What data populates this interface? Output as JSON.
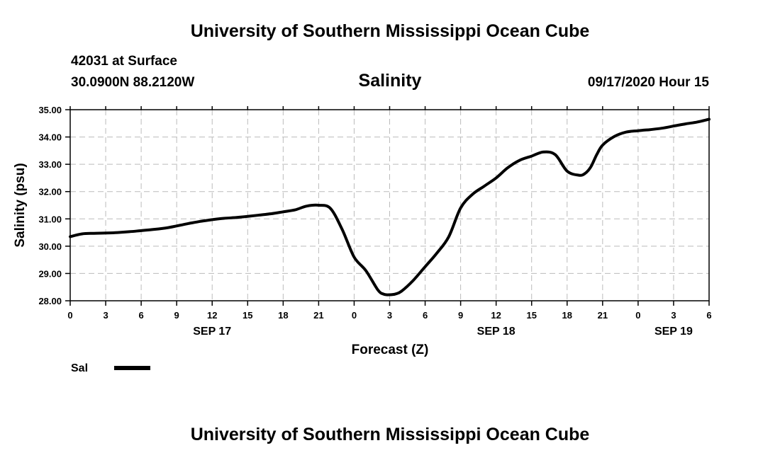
{
  "header": {
    "top_title": "University of Southern Mississippi Ocean Cube",
    "bottom_title": "University of Southern Mississippi Ocean Cube",
    "station": "42031 at Surface",
    "location": "30.0900N 88.2120W",
    "timestamp": "09/17/2020 Hour 15"
  },
  "chart_data": {
    "type": "line",
    "title": "Salinity",
    "xlabel": "Forecast (Z)",
    "ylabel": "Salinity (psu)",
    "ylim": [
      28.0,
      35.0
    ],
    "xlim": [
      0,
      54
    ],
    "grid": true,
    "y_ticks": [
      "28.00",
      "29.00",
      "30.00",
      "31.00",
      "32.00",
      "33.00",
      "34.00",
      "35.00"
    ],
    "x_ticks": [
      "0",
      "3",
      "6",
      "9",
      "12",
      "15",
      "18",
      "21",
      "0",
      "3",
      "6",
      "9",
      "12",
      "15",
      "18",
      "21",
      "0",
      "3",
      "6"
    ],
    "date_labels": [
      {
        "label": "SEP 17",
        "hour_offset": 12
      },
      {
        "label": "SEP 18",
        "hour_offset": 36
      },
      {
        "label": "SEP 19",
        "hour_offset": 51
      }
    ],
    "legend_position": "bottom-left",
    "series": [
      {
        "name": "Sal",
        "color": "#000000",
        "x": [
          0,
          1,
          2,
          3,
          4,
          5,
          6,
          7,
          8,
          9,
          10,
          11,
          12,
          13,
          14,
          15,
          16,
          17,
          18,
          19,
          20,
          21,
          22,
          23,
          24,
          25,
          26,
          26.5,
          27,
          27.5,
          28,
          29,
          30,
          31,
          32,
          33,
          34,
          35,
          36,
          37,
          38,
          39,
          40,
          41,
          42,
          43,
          43.5,
          44,
          44.5,
          45,
          46,
          47,
          48,
          49,
          50,
          51,
          52,
          53,
          54
        ],
        "values": [
          30.35,
          30.45,
          30.47,
          30.48,
          30.5,
          30.53,
          30.57,
          30.61,
          30.66,
          30.74,
          30.83,
          30.91,
          30.97,
          31.02,
          31.05,
          31.09,
          31.14,
          31.19,
          31.26,
          31.33,
          31.47,
          31.5,
          31.38,
          30.6,
          29.6,
          29.1,
          28.4,
          28.24,
          28.22,
          28.25,
          28.35,
          28.75,
          29.25,
          29.75,
          30.35,
          31.4,
          31.9,
          32.2,
          32.5,
          32.88,
          33.15,
          33.3,
          33.45,
          33.35,
          32.75,
          32.6,
          32.66,
          32.9,
          33.35,
          33.7,
          34.02,
          34.18,
          34.23,
          34.27,
          34.32,
          34.4,
          34.48,
          34.55,
          34.65
        ]
      }
    ]
  }
}
